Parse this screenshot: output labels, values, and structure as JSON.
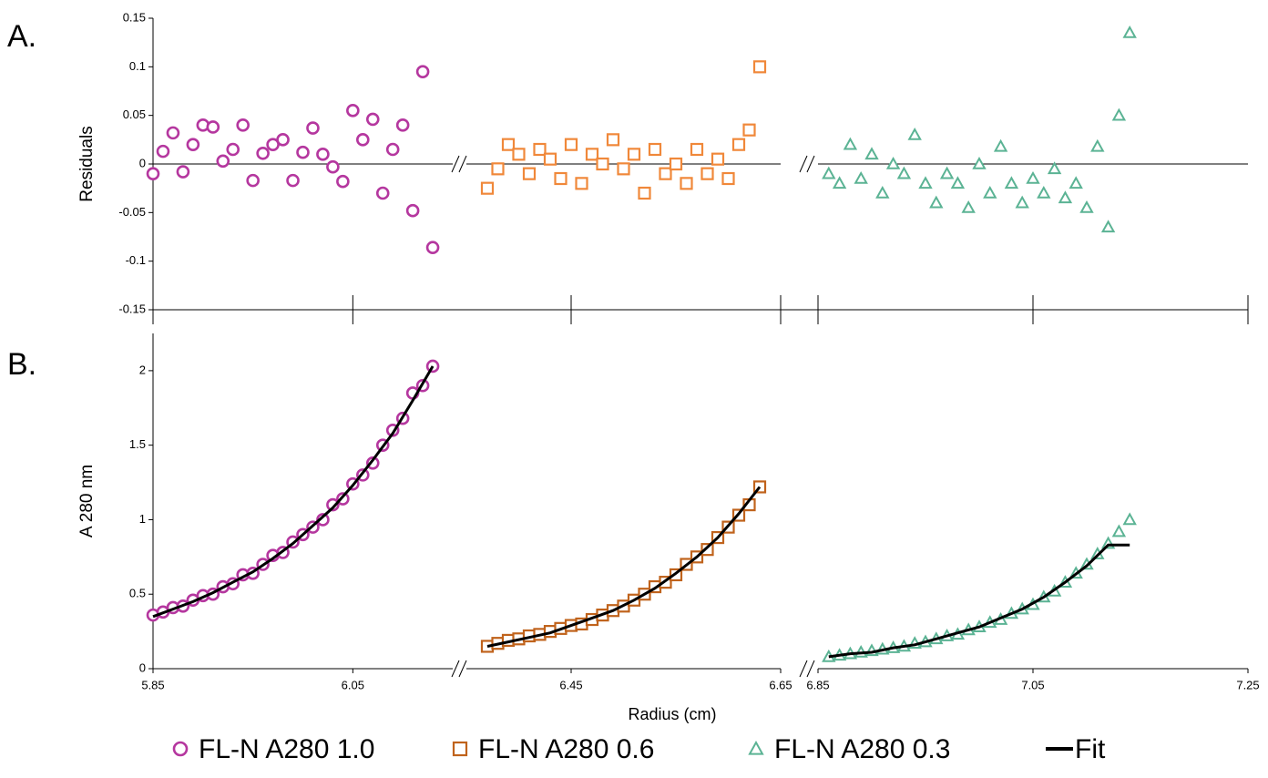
{
  "chart_data": [
    {
      "type": "scatter",
      "panel_label": "A.",
      "y_label": "Residuals",
      "ylim": [
        -0.15,
        0.15
      ],
      "yticks": [
        -0.15,
        -0.1,
        -0.05,
        0,
        0.05,
        0.1,
        0.15
      ],
      "zero_line": true,
      "series": [
        {
          "name": "FL-N A280 1.0",
          "color": "#b5379f",
          "marker": "circle",
          "x": [
            5.85,
            5.86,
            5.87,
            5.88,
            5.89,
            5.9,
            5.91,
            5.92,
            5.93,
            5.94,
            5.95,
            5.96,
            5.97,
            5.98,
            5.99,
            6.0,
            6.01,
            6.02,
            6.03,
            6.04,
            6.05,
            6.06,
            6.07,
            6.08,
            6.09,
            6.1,
            6.11,
            6.12,
            6.13
          ],
          "values": [
            -0.01,
            0.013,
            0.032,
            -0.008,
            0.02,
            0.04,
            0.038,
            0.003,
            0.015,
            0.04,
            -0.017,
            0.011,
            0.02,
            0.025,
            -0.017,
            0.012,
            0.037,
            0.01,
            -0.003,
            -0.018,
            0.055,
            0.025,
            0.046,
            -0.03,
            0.015,
            0.04,
            -0.048,
            0.095,
            -0.086
          ]
        },
        {
          "name": "FL-N A280 0.6",
          "color": "#f0883a",
          "marker": "square",
          "x": [
            6.37,
            6.38,
            6.39,
            6.4,
            6.41,
            6.42,
            6.43,
            6.44,
            6.45,
            6.46,
            6.47,
            6.48,
            6.49,
            6.5,
            6.51,
            6.52,
            6.53,
            6.54,
            6.55,
            6.56,
            6.57,
            6.58,
            6.59,
            6.6,
            6.61,
            6.62,
            6.63
          ],
          "values": [
            -0.025,
            -0.005,
            0.02,
            0.01,
            -0.01,
            0.015,
            0.005,
            -0.015,
            0.02,
            -0.02,
            0.01,
            0.0,
            0.025,
            -0.005,
            0.01,
            -0.03,
            0.015,
            -0.01,
            0.0,
            -0.02,
            0.015,
            -0.01,
            0.005,
            -0.015,
            0.02,
            0.035,
            0.1
          ]
        },
        {
          "name": "FL-N A280 0.3",
          "color": "#5bb394",
          "marker": "triangle",
          "x": [
            6.86,
            6.87,
            6.88,
            6.89,
            6.9,
            6.91,
            6.92,
            6.93,
            6.94,
            6.95,
            6.96,
            6.97,
            6.98,
            6.99,
            7.0,
            7.01,
            7.02,
            7.03,
            7.04,
            7.05,
            7.06,
            7.07,
            7.08,
            7.09,
            7.1,
            7.11,
            7.12,
            7.13,
            7.14
          ],
          "values": [
            -0.01,
            -0.02,
            0.02,
            -0.015,
            0.01,
            -0.03,
            0.0,
            -0.01,
            0.03,
            -0.02,
            -0.04,
            -0.01,
            -0.02,
            -0.045,
            0.0,
            -0.03,
            0.018,
            -0.02,
            -0.04,
            -0.015,
            -0.03,
            -0.005,
            -0.035,
            -0.02,
            -0.045,
            0.018,
            -0.065,
            0.05,
            0.135
          ]
        }
      ]
    },
    {
      "type": "scatter",
      "panel_label": "B.",
      "y_label": "A 280 nm",
      "x_label": "Radius (cm)",
      "ylim": [
        0,
        2.25
      ],
      "yticks": [
        0,
        0.5,
        1,
        1.5,
        2
      ],
      "legend": "bottom",
      "x_segments": [
        {
          "xlim": [
            5.85,
            6.15
          ],
          "xticks": [
            5.85,
            6.05
          ]
        },
        {
          "xlim": [
            6.35,
            6.65
          ],
          "xticks": [
            6.45,
            6.65
          ]
        },
        {
          "xlim": [
            6.85,
            7.25
          ],
          "xticks": [
            6.85,
            7.05,
            7.25
          ]
        }
      ],
      "series": [
        {
          "name": "FL-N A280 1.0",
          "color": "#b5379f",
          "marker": "circle",
          "x": [
            5.85,
            5.86,
            5.87,
            5.88,
            5.89,
            5.9,
            5.91,
            5.92,
            5.93,
            5.94,
            5.95,
            5.96,
            5.97,
            5.98,
            5.99,
            6.0,
            6.01,
            6.02,
            6.03,
            6.04,
            6.05,
            6.06,
            6.07,
            6.08,
            6.09,
            6.1,
            6.11,
            6.12,
            6.13
          ],
          "values": [
            0.36,
            0.38,
            0.41,
            0.42,
            0.46,
            0.49,
            0.5,
            0.55,
            0.57,
            0.63,
            0.64,
            0.7,
            0.76,
            0.78,
            0.85,
            0.9,
            0.95,
            1.0,
            1.1,
            1.14,
            1.24,
            1.3,
            1.38,
            1.5,
            1.6,
            1.68,
            1.85,
            1.9,
            2.03
          ]
        },
        {
          "name": "FL-N A280 0.6",
          "color": "#c0631c",
          "marker": "square",
          "x": [
            6.37,
            6.38,
            6.39,
            6.4,
            6.41,
            6.42,
            6.43,
            6.44,
            6.45,
            6.46,
            6.47,
            6.48,
            6.49,
            6.5,
            6.51,
            6.52,
            6.53,
            6.54,
            6.55,
            6.56,
            6.57,
            6.58,
            6.59,
            6.6,
            6.61,
            6.62,
            6.63
          ],
          "values": [
            0.15,
            0.17,
            0.19,
            0.2,
            0.22,
            0.23,
            0.25,
            0.27,
            0.29,
            0.3,
            0.33,
            0.36,
            0.39,
            0.42,
            0.46,
            0.5,
            0.55,
            0.58,
            0.63,
            0.7,
            0.75,
            0.8,
            0.88,
            0.95,
            1.03,
            1.1,
            1.22
          ]
        },
        {
          "name": "FL-N A280 0.3",
          "color": "#5bb394",
          "marker": "triangle",
          "x": [
            6.86,
            6.87,
            6.88,
            6.89,
            6.9,
            6.91,
            6.92,
            6.93,
            6.94,
            6.95,
            6.96,
            6.97,
            6.98,
            6.99,
            7.0,
            7.01,
            7.02,
            7.03,
            7.04,
            7.05,
            7.06,
            7.07,
            7.08,
            7.09,
            7.1,
            7.11,
            7.12,
            7.13,
            7.14
          ],
          "values": [
            0.08,
            0.09,
            0.1,
            0.11,
            0.12,
            0.13,
            0.14,
            0.15,
            0.17,
            0.18,
            0.2,
            0.22,
            0.23,
            0.26,
            0.28,
            0.31,
            0.33,
            0.37,
            0.4,
            0.43,
            0.48,
            0.52,
            0.58,
            0.64,
            0.7,
            0.77,
            0.84,
            0.92,
            1.0
          ]
        },
        {
          "name": "Fit",
          "color": "#000000",
          "marker": "line",
          "x": [
            5.85,
            5.87,
            5.89,
            5.91,
            5.93,
            5.95,
            5.97,
            5.99,
            6.01,
            6.03,
            6.05,
            6.07,
            6.09,
            6.11,
            6.13,
            null,
            6.37,
            6.39,
            6.41,
            6.43,
            6.45,
            6.47,
            6.49,
            6.51,
            6.53,
            6.55,
            6.57,
            6.59,
            6.61,
            6.63,
            null,
            6.86,
            6.88,
            6.9,
            6.92,
            6.94,
            6.96,
            6.98,
            7.0,
            7.02,
            7.04,
            7.06,
            7.08,
            7.1,
            7.12,
            7.14
          ],
          "values": [
            0.35,
            0.4,
            0.45,
            0.51,
            0.58,
            0.65,
            0.74,
            0.84,
            0.96,
            1.08,
            1.23,
            1.4,
            1.58,
            1.8,
            2.03,
            null,
            0.15,
            0.18,
            0.21,
            0.24,
            0.29,
            0.34,
            0.39,
            0.46,
            0.54,
            0.64,
            0.75,
            0.88,
            1.04,
            1.22,
            null,
            0.08,
            0.1,
            0.11,
            0.14,
            0.16,
            0.2,
            0.24,
            0.28,
            0.34,
            0.4,
            0.48,
            0.58,
            0.69,
            0.83,
            0.83
          ]
        }
      ]
    }
  ]
}
